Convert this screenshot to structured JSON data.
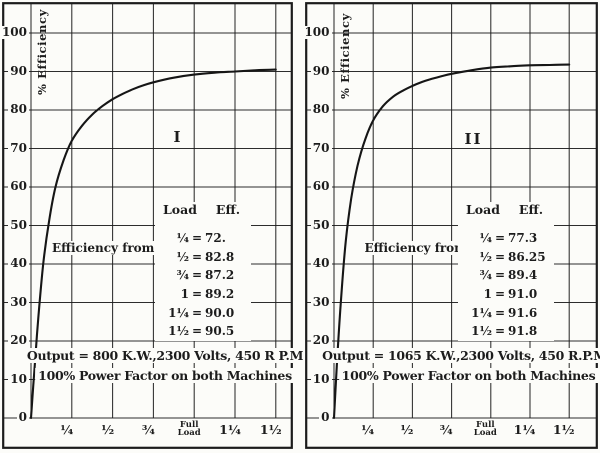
{
  "page": {
    "background": "#fcfcf9",
    "ink": "#1c1c1c",
    "curve_color": "#161616"
  },
  "chart_data": [
    {
      "type": "line",
      "panel_label": "I",
      "ylabel": "% Efficiency",
      "y_ticks": [
        0,
        10,
        20,
        30,
        40,
        50,
        60,
        70,
        80,
        90,
        100
      ],
      "x_tick_labels": [
        [
          "¼"
        ],
        [
          "½"
        ],
        [
          "¾"
        ],
        [
          "Full",
          "Load"
        ],
        [
          "1¼"
        ],
        [
          "1½"
        ]
      ],
      "x_tick_values": [
        0.25,
        0.5,
        0.75,
        1.0,
        1.25,
        1.5
      ],
      "xlim": [
        0,
        1.5
      ],
      "ylim": [
        0,
        110
      ],
      "grid": "on",
      "annotation": "Efficiency from Test",
      "table": {
        "headers": [
          "Load",
          "Eff."
        ],
        "equals": "=",
        "rows": [
          [
            "¼",
            "72."
          ],
          [
            "½",
            "82.8"
          ],
          [
            "¾",
            "87.2"
          ],
          [
            "1",
            "89.2"
          ],
          [
            "1¼",
            "90.0"
          ],
          [
            "1½",
            "90.5"
          ]
        ]
      },
      "test_points": {
        "x": [
          0.25,
          0.5,
          0.75,
          1.0,
          1.25,
          1.5
        ],
        "y": [
          72,
          82.8,
          87.2,
          89.2,
          90.0,
          90.5
        ]
      },
      "curve_points": [
        [
          0,
          0
        ],
        [
          0.02,
          12
        ],
        [
          0.045,
          26
        ],
        [
          0.075,
          40
        ],
        [
          0.11,
          51
        ],
        [
          0.15,
          60
        ],
        [
          0.2,
          67
        ],
        [
          0.25,
          72
        ],
        [
          0.3125,
          75.9
        ],
        [
          0.375,
          78.8
        ],
        [
          0.4375,
          81
        ],
        [
          0.5,
          82.8
        ],
        [
          0.5625,
          84.2
        ],
        [
          0.625,
          85.4
        ],
        [
          0.6875,
          86.4
        ],
        [
          0.75,
          87.2
        ],
        [
          0.875,
          88.4
        ],
        [
          1.0,
          89.2
        ],
        [
          1.125,
          89.7
        ],
        [
          1.25,
          90.0
        ],
        [
          1.375,
          90.3
        ],
        [
          1.5,
          90.5
        ]
      ],
      "footnote_line1": "Output = 800 K.W.,2300 Volts, 450 R P.M",
      "footnote_line2": "100% Power Factor on both Machines"
    },
    {
      "type": "line",
      "panel_label": "II",
      "ylabel": "% Efficiency",
      "y_ticks": [
        0,
        10,
        20,
        30,
        40,
        50,
        60,
        70,
        80,
        90,
        100
      ],
      "x_tick_labels": [
        [
          "¼"
        ],
        [
          "½"
        ],
        [
          "¾"
        ],
        [
          "Full",
          "Load"
        ],
        [
          "1¼"
        ],
        [
          "1½"
        ]
      ],
      "x_tick_values": [
        0.25,
        0.5,
        0.75,
        1.0,
        1.25,
        1.5
      ],
      "xlim": [
        0,
        1.5
      ],
      "ylim": [
        0,
        110
      ],
      "grid": "on",
      "annotation": "Efficiency from Test",
      "table": {
        "headers": [
          "Load",
          "Eff."
        ],
        "equals": "=",
        "rows": [
          [
            "¼",
            "77.3"
          ],
          [
            "½",
            "86.25"
          ],
          [
            "¾",
            "89.4"
          ],
          [
            "1",
            "91.0"
          ],
          [
            "1¼",
            "91.6"
          ],
          [
            "1½",
            "91.8"
          ]
        ]
      },
      "test_points": {
        "x": [
          0.25,
          0.5,
          0.75,
          1.0,
          1.25,
          1.5
        ],
        "y": [
          77.3,
          86.25,
          89.4,
          91.0,
          91.6,
          91.8
        ]
      },
      "curve_points": [
        [
          0,
          0
        ],
        [
          0.02,
          15
        ],
        [
          0.045,
          31
        ],
        [
          0.075,
          46
        ],
        [
          0.11,
          57
        ],
        [
          0.15,
          65.5
        ],
        [
          0.2,
          72.5
        ],
        [
          0.25,
          77.3
        ],
        [
          0.3125,
          81
        ],
        [
          0.375,
          83.4
        ],
        [
          0.4375,
          85
        ],
        [
          0.5,
          86.25
        ],
        [
          0.5625,
          87.3
        ],
        [
          0.625,
          88.1
        ],
        [
          0.6875,
          88.8
        ],
        [
          0.75,
          89.4
        ],
        [
          0.875,
          90.3
        ],
        [
          1.0,
          91.0
        ],
        [
          1.125,
          91.35
        ],
        [
          1.25,
          91.6
        ],
        [
          1.375,
          91.7
        ],
        [
          1.5,
          91.8
        ]
      ],
      "footnote_line1": "Output = 1065 K.W.,2300 Volts, 450 R.P.M.",
      "footnote_line2": "100% Power Factor on both Machines"
    }
  ]
}
